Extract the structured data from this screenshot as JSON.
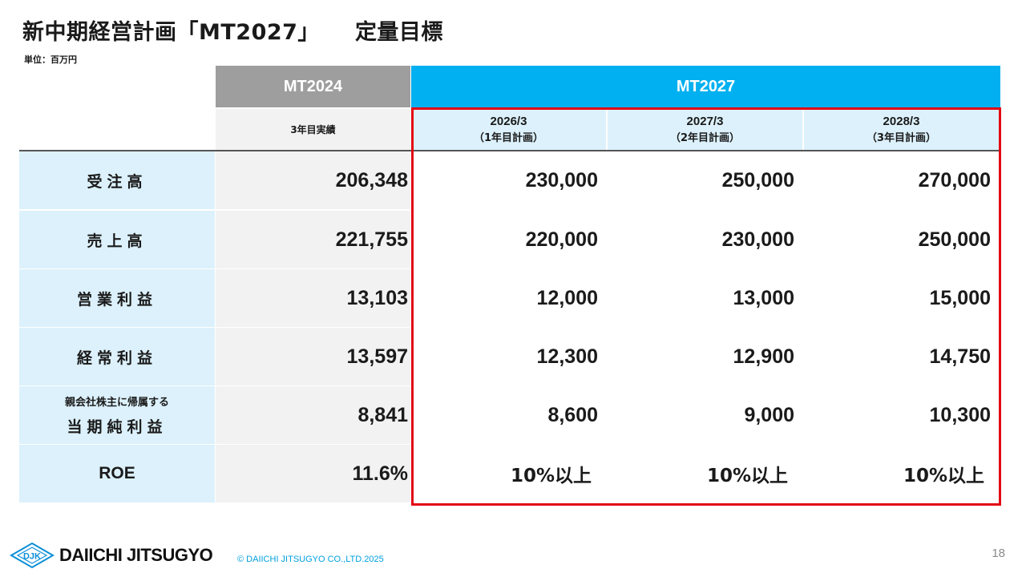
{
  "title": {
    "main": "新中期経営計画「MT2027」",
    "sub": "定量目標"
  },
  "unit": "単位：百万円",
  "table": {
    "header": {
      "mt2024": "MT2024",
      "mt2027": "MT2027",
      "actual": "3年目実績",
      "years": [
        {
          "date": "2026/3",
          "plan": "（1年目計画）"
        },
        {
          "date": "2027/3",
          "plan": "（2年目計画）"
        },
        {
          "date": "2028/3",
          "plan": "（3年目計画）"
        }
      ]
    },
    "rows": [
      {
        "label": "受注高",
        "actual": "206,348",
        "plans": [
          "230,000",
          "250,000",
          "270,000"
        ]
      },
      {
        "label": "売上高",
        "actual": "221,755",
        "plans": [
          "220,000",
          "230,000",
          "250,000"
        ]
      },
      {
        "label": "営業利益",
        "actual": "13,103",
        "plans": [
          "12,000",
          "13,000",
          "15,000"
        ]
      },
      {
        "label": "経常利益",
        "actual": "13,597",
        "plans": [
          "12,300",
          "12,900",
          "14,750"
        ]
      },
      {
        "label_top": "親会社株主に帰属する",
        "label": "当期純利益",
        "actual": "8,841",
        "plans": [
          "8,600",
          "9,000",
          "10,300"
        ]
      },
      {
        "label": "ROE",
        "actual": "11.6%",
        "plans": [
          "10%以上",
          "10%以上",
          "10%以上"
        ]
      }
    ]
  },
  "footer": {
    "logo_mark": "DJK",
    "logo_text": "DAIICHI JITSUGYO",
    "copyright": "© DAIICHI JITSUGYO CO.,LTD.2025",
    "page_number": "18"
  },
  "colors": {
    "mt2024_header": "#9e9e9e",
    "mt2027_header": "#00b0f0",
    "label_bg": "#dcf1fb",
    "actual_bg": "#f2f2f2",
    "highlight_border": "#e30613"
  }
}
